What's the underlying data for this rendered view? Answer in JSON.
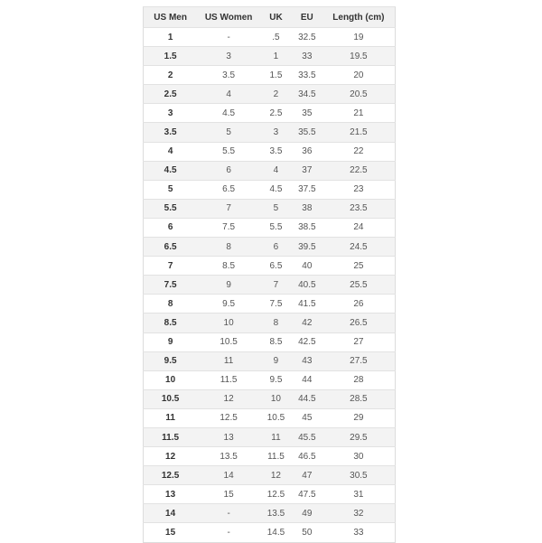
{
  "headers": [
    "US Men",
    "US Women",
    "UK",
    "EU",
    "Length (cm)"
  ],
  "rows": [
    [
      "1",
      "-",
      ".5",
      "32.5",
      "19"
    ],
    [
      "1.5",
      "3",
      "1",
      "33",
      "19.5"
    ],
    [
      "2",
      "3.5",
      "1.5",
      "33.5",
      "20"
    ],
    [
      "2.5",
      "4",
      "2",
      "34.5",
      "20.5"
    ],
    [
      "3",
      "4.5",
      "2.5",
      "35",
      "21"
    ],
    [
      "3.5",
      "5",
      "3",
      "35.5",
      "21.5"
    ],
    [
      "4",
      "5.5",
      "3.5",
      "36",
      "22"
    ],
    [
      "4.5",
      "6",
      "4",
      "37",
      "22.5"
    ],
    [
      "5",
      "6.5",
      "4.5",
      "37.5",
      "23"
    ],
    [
      "5.5",
      "7",
      "5",
      "38",
      "23.5"
    ],
    [
      "6",
      "7.5",
      "5.5",
      "38.5",
      "24"
    ],
    [
      "6.5",
      "8",
      "6",
      "39.5",
      "24.5"
    ],
    [
      "7",
      "8.5",
      "6.5",
      "40",
      "25"
    ],
    [
      "7.5",
      "9",
      "7",
      "40.5",
      "25.5"
    ],
    [
      "8",
      "9.5",
      "7.5",
      "41.5",
      "26"
    ],
    [
      "8.5",
      "10",
      "8",
      "42",
      "26.5"
    ],
    [
      "9",
      "10.5",
      "8.5",
      "42.5",
      "27"
    ],
    [
      "9.5",
      "11",
      "9",
      "43",
      "27.5"
    ],
    [
      "10",
      "11.5",
      "9.5",
      "44",
      "28"
    ],
    [
      "10.5",
      "12",
      "10",
      "44.5",
      "28.5"
    ],
    [
      "11",
      "12.5",
      "10.5",
      "45",
      "29"
    ],
    [
      "11.5",
      "13",
      "11",
      "45.5",
      "29.5"
    ],
    [
      "12",
      "13.5",
      "11.5",
      "46.5",
      "30"
    ],
    [
      "12.5",
      "14",
      "12",
      "47",
      "30.5"
    ],
    [
      "13",
      "15",
      "12.5",
      "47.5",
      "31"
    ],
    [
      "14",
      "-",
      "13.5",
      "49",
      "32"
    ],
    [
      "15",
      "-",
      "14.5",
      "50",
      "33"
    ]
  ]
}
